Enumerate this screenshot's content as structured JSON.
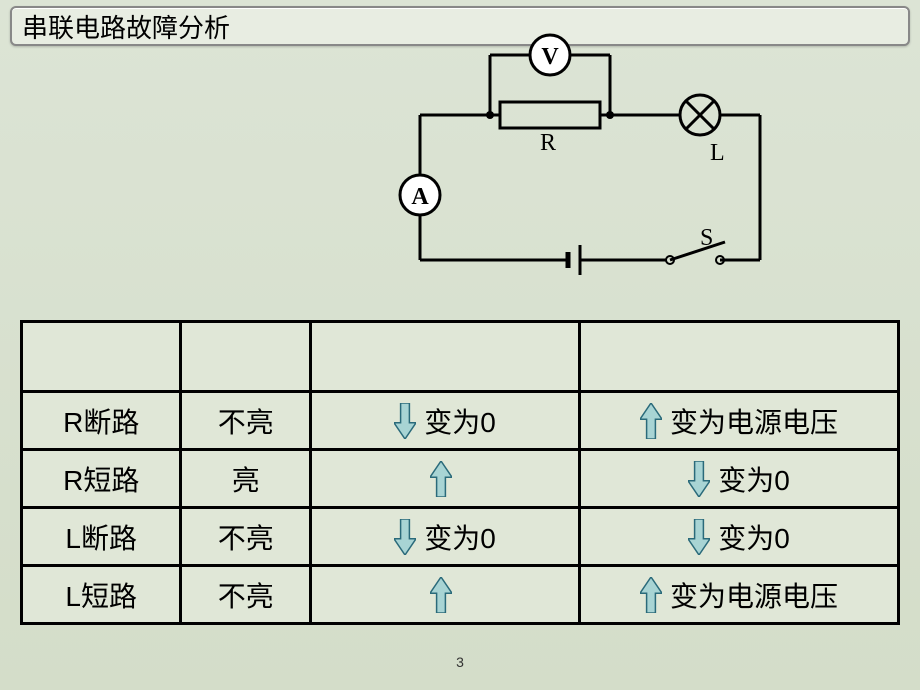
{
  "title": "串联电路故障分析",
  "circuit": {
    "labels": {
      "V": "V",
      "A": "A",
      "R": "R",
      "L": "L",
      "S": "S"
    },
    "wire_color": "#000000",
    "wire_width": 3,
    "meter_fill": "#ffffff",
    "meter_stroke": "#000000"
  },
  "arrow_style": {
    "up_fill": "#a8d4d4",
    "down_fill": "#a8d4d4",
    "stroke": "#2a6a7a",
    "width": 22,
    "height": 36
  },
  "table": {
    "header": [
      "",
      "",
      "",
      ""
    ],
    "rows": [
      {
        "cond": "R断路",
        "lamp": "不亮",
        "A": {
          "dir": "down",
          "text": "变为0"
        },
        "V": {
          "dir": "up",
          "text": "变为电源电压"
        }
      },
      {
        "cond": "R短路",
        "lamp": "亮",
        "A": {
          "dir": "up",
          "text": ""
        },
        "V": {
          "dir": "down",
          "text": "变为0"
        }
      },
      {
        "cond": "L断路",
        "lamp": "不亮",
        "A": {
          "dir": "down",
          "text": "变为0"
        },
        "V": {
          "dir": "down",
          "text": "变为0"
        }
      },
      {
        "cond": "L短路",
        "lamp": "不亮",
        "A": {
          "dir": "up",
          "text": ""
        },
        "V": {
          "dir": "up",
          "text": "变为电源电压"
        }
      }
    ]
  },
  "page_number": "3",
  "colors": {
    "bg_top": "#dce4d5",
    "bg_bottom": "#d4ddc9",
    "border": "#000000",
    "text": "#000000"
  }
}
